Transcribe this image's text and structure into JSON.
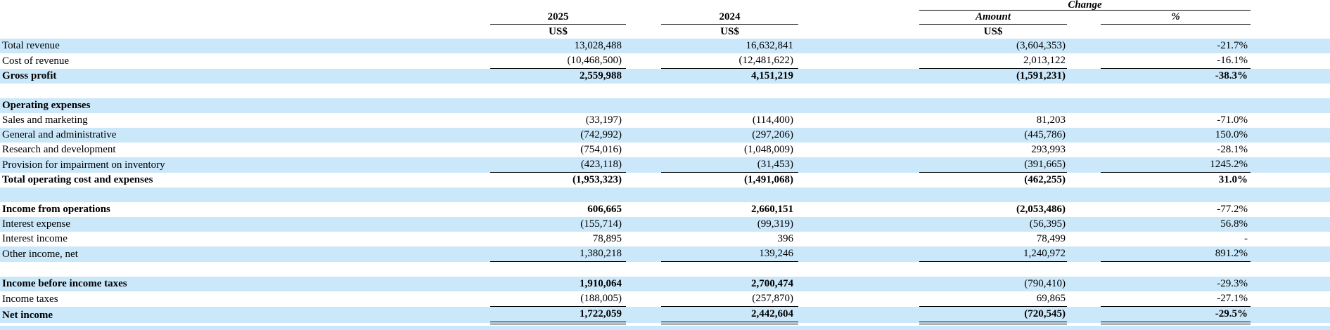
{
  "header": {
    "change_label": "Change",
    "col_2025": "2025",
    "col_2024": "2024",
    "amount_label": "Amount",
    "pct_label": "%",
    "currency_label": "US$"
  },
  "colors": {
    "row_highlight": "#cbe8fa",
    "rule": "#000000"
  },
  "rows": [
    {
      "label": "Total revenue",
      "v2025": "13,028,488",
      "v2024": "16,632,841",
      "amount": "(3,604,353)",
      "pct": "-21.7%",
      "shade": true,
      "rule": "none",
      "bold": [
        false,
        false,
        false,
        false,
        false
      ]
    },
    {
      "label": "Cost of revenue",
      "v2025": "(10,468,500)",
      "v2024": "(12,481,622)",
      "amount": "2,013,122",
      "pct": "-16.1%",
      "shade": false,
      "rule": "single",
      "bold": [
        false,
        false,
        false,
        false,
        false
      ]
    },
    {
      "label": "Gross profit",
      "v2025": "2,559,988",
      "v2024": "4,151,219",
      "amount": "(1,591,231)",
      "pct": "-38.3%",
      "shade": true,
      "rule": "none",
      "bold": [
        true,
        true,
        true,
        true,
        true
      ]
    },
    {
      "blank": true,
      "shade": false
    },
    {
      "label": "Operating expenses",
      "v2025": "",
      "v2024": "",
      "amount": "",
      "pct": "",
      "shade": true,
      "rule": "none",
      "bold": [
        true,
        false,
        false,
        false,
        false
      ]
    },
    {
      "label": "Sales and marketing",
      "v2025": "(33,197)",
      "v2024": "(114,400)",
      "amount": "81,203",
      "pct": "-71.0%",
      "shade": false,
      "rule": "none",
      "bold": [
        false,
        false,
        false,
        false,
        false
      ]
    },
    {
      "label": "General and administrative",
      "v2025": "(742,992)",
      "v2024": "(297,206)",
      "amount": "(445,786)",
      "pct": "150.0%",
      "shade": true,
      "rule": "none",
      "bold": [
        false,
        false,
        false,
        false,
        false
      ]
    },
    {
      "label": "Research and development",
      "v2025": "(754,016)",
      "v2024": "(1,048,009)",
      "amount": "293,993",
      "pct": "-28.1%",
      "shade": false,
      "rule": "none",
      "bold": [
        false,
        false,
        false,
        false,
        false
      ]
    },
    {
      "label": "Provision for impairment on inventory",
      "v2025": "(423,118)",
      "v2024": "(31,453)",
      "amount": "(391,665)",
      "pct": "1245.2%",
      "shade": true,
      "rule": "single",
      "bold": [
        false,
        false,
        false,
        false,
        false
      ]
    },
    {
      "label": "Total operating cost and expenses",
      "v2025": "(1,953,323)",
      "v2024": "(1,491,068)",
      "amount": "(462,255)",
      "pct": "31.0%",
      "shade": false,
      "rule": "none",
      "bold": [
        true,
        true,
        true,
        true,
        true
      ]
    },
    {
      "blank": true,
      "shade": true
    },
    {
      "label": "Income from operations",
      "v2025": "606,665",
      "v2024": "2,660,151",
      "amount": "(2,053,486)",
      "pct": "-77.2%",
      "shade": false,
      "rule": "none",
      "bold": [
        true,
        true,
        true,
        true,
        false
      ]
    },
    {
      "label": "Interest expense",
      "v2025": "(155,714)",
      "v2024": "(99,319)",
      "amount": "(56,395)",
      "pct": "56.8%",
      "shade": true,
      "rule": "none",
      "bold": [
        false,
        false,
        false,
        false,
        false
      ]
    },
    {
      "label": "Interest income",
      "v2025": "78,895",
      "v2024": "396",
      "amount": "78,499",
      "pct": "-",
      "shade": false,
      "rule": "none",
      "bold": [
        false,
        false,
        false,
        false,
        false
      ]
    },
    {
      "label": "Other income, net",
      "v2025": "1,380,218",
      "v2024": "139,246",
      "amount": "1,240,972",
      "pct": "891.2%",
      "shade": true,
      "rule": "single",
      "bold": [
        false,
        false,
        false,
        false,
        false
      ]
    },
    {
      "blank": true,
      "shade": false
    },
    {
      "label": "Income before income taxes",
      "v2025": "1,910,064",
      "v2024": "2,700,474",
      "amount": "(790,410)",
      "pct": "-29.3%",
      "shade": true,
      "rule": "none",
      "bold": [
        true,
        true,
        true,
        false,
        false
      ]
    },
    {
      "label": "Income taxes",
      "v2025": "(188,005)",
      "v2024": "(257,870)",
      "amount": "69,865",
      "pct": "-27.1%",
      "shade": false,
      "rule": "single",
      "bold": [
        false,
        false,
        false,
        false,
        false
      ]
    },
    {
      "label": "Net income",
      "v2025": "1,722,059",
      "v2024": "2,442,604",
      "amount": "(720,545)",
      "pct": "-29.5%",
      "shade": true,
      "rule": "double",
      "bold": [
        true,
        true,
        true,
        true,
        true
      ]
    }
  ]
}
